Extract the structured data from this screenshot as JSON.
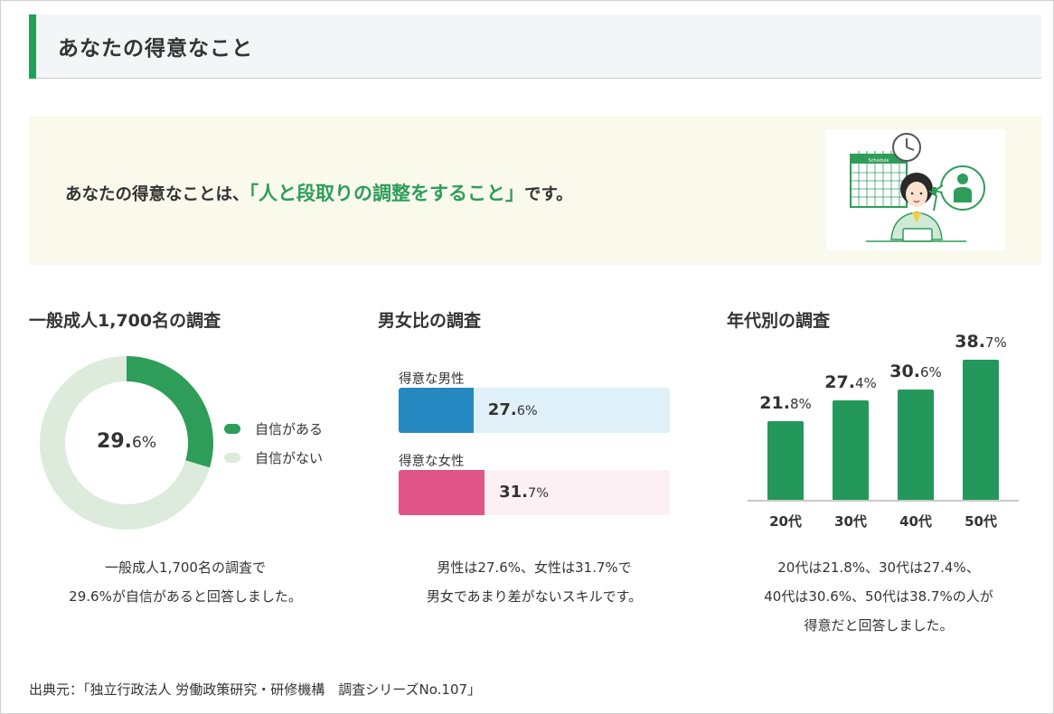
{
  "header": {
    "title": "あなたの得意なこと"
  },
  "result": {
    "prefix": "あなたの得意なことは、",
    "highlight": "「人と段取りの調整をすること」",
    "suffix": "です。",
    "illustration": {
      "calendar_label": "Schedule"
    }
  },
  "colors": {
    "accent": "#22a05a",
    "donut_yes": "#2e9d5a",
    "donut_no": "#dcebdc",
    "male": "#2688c0",
    "male_track": "#e0f0f8",
    "female": "#e05488",
    "female_track": "#fdf0f4",
    "age_bar": "#23985a"
  },
  "sections": {
    "overall": {
      "title": "一般成人1,700名の調査",
      "desc_line1": "一般成人1,700名の調査で",
      "desc_line2": "29.6%が自信があると回答しました。"
    },
    "gender": {
      "title": "男女比の調査",
      "desc_line1": "男性は27.6%、女性は31.7%で",
      "desc_line2": "男女であまり差がないスキルです。"
    },
    "age": {
      "title": "年代別の調査",
      "desc_line1": "20代は21.8%、30代は27.4%、",
      "desc_line2": "40代は30.6%、50代は38.7%の人が",
      "desc_line3": "得意だと回答しました。"
    }
  },
  "chart_data": [
    {
      "type": "pie",
      "title": "一般成人1,700名の調査",
      "labels": [
        "自信がある",
        "自信がない"
      ],
      "values": [
        29.6,
        70.4
      ],
      "center_label": {
        "main": "29.",
        "sub": "6%"
      },
      "legend": "right"
    },
    {
      "type": "bar",
      "title": "男女比の調査",
      "orientation": "horizontal",
      "categories": [
        "得意な男性",
        "得意な女性"
      ],
      "values": [
        27.6,
        31.7
      ],
      "value_labels": [
        {
          "main": "27.",
          "sub": "6%"
        },
        {
          "main": "31.",
          "sub": "7%"
        }
      ]
    },
    {
      "type": "bar",
      "title": "年代別の調査",
      "categories": [
        "20代",
        "30代",
        "40代",
        "50代"
      ],
      "values": [
        21.8,
        27.4,
        30.6,
        38.7
      ],
      "value_labels": [
        {
          "main": "21.",
          "sub": "8%"
        },
        {
          "main": "27.",
          "sub": "4%"
        },
        {
          "main": "30.",
          "sub": "6%"
        },
        {
          "main": "38.",
          "sub": "7%"
        }
      ]
    }
  ],
  "source": "出典元：「独立行政法人 労働政策研究・研修機構　調査シリーズNo.107」"
}
